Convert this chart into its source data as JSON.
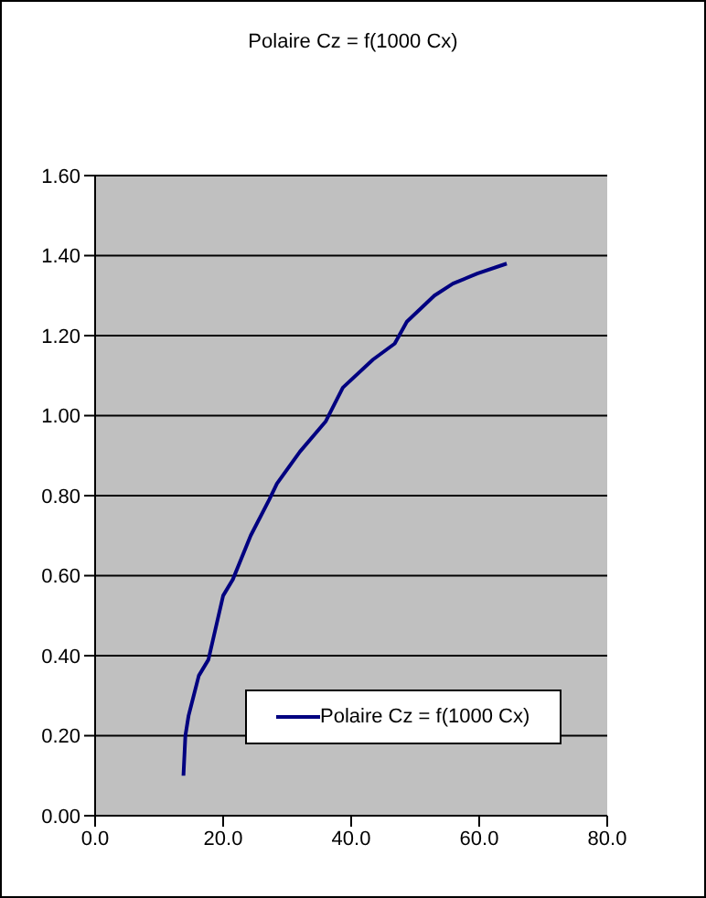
{
  "chart_data": {
    "type": "line",
    "title": "Polaire Cz = f(1000 Cx)",
    "series": [
      {
        "name": "Polaire Cz = f(1000 Cx)",
        "color": "#000080",
        "x": [
          13.8,
          14.1,
          14.6,
          16.2,
          17.7,
          20.0,
          21.5,
          24.3,
          27.2,
          28.4,
          32.0,
          36.0,
          38.7,
          43.4,
          46.8,
          48.7,
          53.0,
          55.9,
          59.7,
          64.3
        ],
        "values": [
          0.1,
          0.2,
          0.25,
          0.35,
          0.39,
          0.55,
          0.59,
          0.7,
          0.79,
          0.83,
          0.91,
          0.985,
          1.07,
          1.14,
          1.18,
          1.235,
          1.3,
          1.33,
          1.355,
          1.38
        ]
      }
    ],
    "xlim": [
      0,
      80
    ],
    "xticks": [
      {
        "value": 0,
        "label": "0.0"
      },
      {
        "value": 20,
        "label": "20.0"
      },
      {
        "value": 40,
        "label": "40.0"
      },
      {
        "value": 60,
        "label": "60.0"
      },
      {
        "value": 80,
        "label": "80.0"
      }
    ],
    "ylim": [
      0,
      1.6
    ],
    "yticks": [
      {
        "value": 0,
        "label": "0.00"
      },
      {
        "value": 0.2,
        "label": "0.20"
      },
      {
        "value": 0.4,
        "label": "0.40"
      },
      {
        "value": 0.6,
        "label": "0.60"
      },
      {
        "value": 0.8,
        "label": "0.80"
      },
      {
        "value": 1.0,
        "label": "1.00"
      },
      {
        "value": 1.2,
        "label": "1.20"
      },
      {
        "value": 1.4,
        "label": "1.40"
      },
      {
        "value": 1.6,
        "label": "1.60"
      }
    ],
    "grid": "y",
    "legend": "bottom right",
    "marker": "none",
    "line_style": "solid"
  }
}
